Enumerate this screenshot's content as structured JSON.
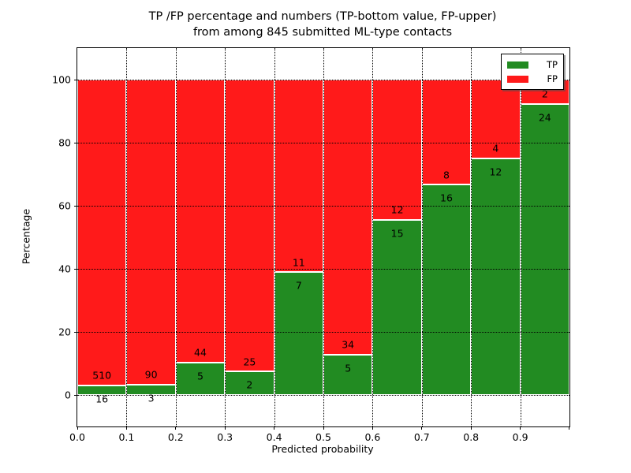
{
  "chart_data": {
    "type": "bar",
    "stacked": true,
    "percentage_normalized": true,
    "title_line1": "TP /FP percentage and numbers (TP-bottom value, FP-upper)",
    "title_line2": "from among 845 submitted ML-type contacts",
    "xlabel": "Predicted probability",
    "ylabel": "Percentage",
    "total_contacts": 845,
    "categories": [
      "0.0-0.1",
      "0.1-0.2",
      "0.2-0.3",
      "0.3-0.4",
      "0.4-0.5",
      "0.5-0.6",
      "0.6-0.7",
      "0.7-0.8",
      "0.8-0.9",
      "0.9-1.0"
    ],
    "series": [
      {
        "name": "TP",
        "color": "#228b22",
        "position": "bottom",
        "values": [
          16,
          3,
          5,
          2,
          7,
          5,
          15,
          16,
          12,
          24
        ]
      },
      {
        "name": "FP",
        "color": "#ff1a1a",
        "position": "top",
        "values": [
          510,
          90,
          44,
          25,
          11,
          34,
          12,
          8,
          4,
          2
        ]
      }
    ],
    "xticks": [
      "0.0",
      "0.1",
      "0.2",
      "0.3",
      "0.4",
      "0.5",
      "0.6",
      "0.7",
      "0.8",
      "0.9"
    ],
    "yticks": [
      "0",
      "20",
      "40",
      "60",
      "80",
      "100"
    ],
    "xlim": [
      0.0,
      1.0
    ],
    "ylim": [
      -10,
      110
    ],
    "grid": "dotted black, horizontal at y-ticks and vertical at x-ticks, drawn over bars",
    "bar_edge_color": "#ffffff",
    "legend_position": "upper right"
  }
}
